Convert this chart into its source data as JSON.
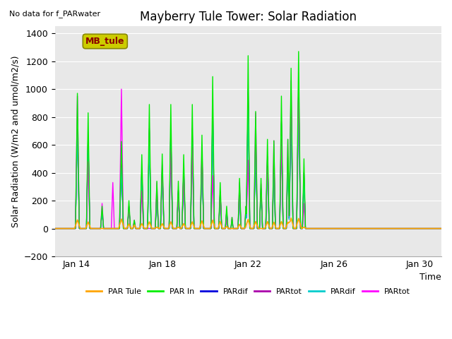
{
  "title": "Mayberry Tule Tower: Solar Radiation",
  "top_left_text": "No data for f_PARwater",
  "ylabel": "Solar Radiation (W/m2 and umol/m2/s)",
  "xlabel": "Time",
  "ylim": [
    -200,
    1450
  ],
  "yticks": [
    -200,
    0,
    200,
    400,
    600,
    800,
    1000,
    1200,
    1400
  ],
  "fig_bg_color": "#ffffff",
  "plot_bg_color": "#e8e8e8",
  "legend_labels": [
    "PAR Tule",
    "PAR In",
    "PARdif",
    "PARtot",
    "PARdif",
    "PARtot"
  ],
  "legend_colors": [
    "#ffa500",
    "#00ee00",
    "#0000dd",
    "#aa00aa",
    "#00cccc",
    "#ff00ff"
  ],
  "series_colors": [
    "#ffa500",
    "#00ee00",
    "#0000dd",
    "#aa00aa",
    "#00cccc",
    "#ff00ff"
  ],
  "annotation_box": "MB_tule",
  "annotation_box_facecolor": "#cccc00",
  "annotation_box_edgecolor": "#888800",
  "annotation_text_color": "#8b0000",
  "x_tick_labels": [
    "Jan 14",
    "Jan 18",
    "Jan 22",
    "Jan 26",
    "Jan 30"
  ],
  "title_fontsize": 12,
  "label_fontsize": 9,
  "tick_fontsize": 9,
  "grid_color": "#ffffff",
  "grid_linewidth": 0.8
}
